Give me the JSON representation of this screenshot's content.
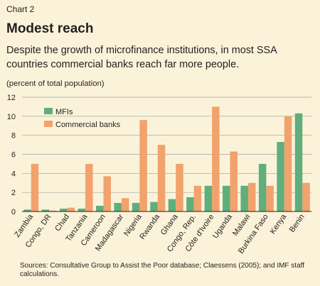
{
  "header": {
    "chart_number": "Chart 2",
    "title": "Modest reach",
    "subtitle": "Despite the growth of microfinance institutions, in most SSA countries commercial banks reach far more people.",
    "unit_note": "(percent of total population)"
  },
  "footer": {
    "source": "Sources: Consultative Group to Assist the Poor database; Claessens (2005); and IMF staff calculations."
  },
  "colors": {
    "mfi": "#5fae7c",
    "banks": "#f2a26c",
    "grid": "#9aa0a6",
    "background": "#fbf3d9"
  },
  "chart_data": {
    "type": "bar",
    "categories": [
      "Zambia",
      "Congo, DR",
      "Chad",
      "Tanzania",
      "Cameroon",
      "Madagascar",
      "Nigeria",
      "Rwanda",
      "Ghana",
      "Congo, Rep.",
      "Côte d'Ivoire",
      "Uganda",
      "Malawi",
      "Burkina Faso",
      "Kenya",
      "Benin"
    ],
    "series": [
      {
        "name": "MFIs",
        "values": [
          0.2,
          0.2,
          0.3,
          0.3,
          0.6,
          0.9,
          0.9,
          1.0,
          1.3,
          1.5,
          2.7,
          2.7,
          2.7,
          5.0,
          7.3,
          10.3
        ]
      },
      {
        "name": "Commercial banks",
        "values": [
          5.0,
          0.1,
          0.4,
          5.0,
          3.7,
          1.4,
          9.6,
          7.0,
          5.0,
          2.7,
          11.0,
          6.3,
          3.0,
          2.7,
          10.0,
          3.0
        ]
      }
    ],
    "ylim": [
      0,
      12
    ],
    "yticks": [
      0,
      2,
      4,
      6,
      8,
      10,
      12
    ],
    "grid": true,
    "legend": "top-left"
  }
}
